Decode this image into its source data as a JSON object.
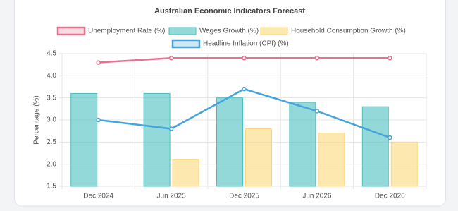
{
  "chart_data": {
    "type": "bar",
    "title": "Australian Economic Indicators Forecast",
    "y_label": "Percentage (%)",
    "categories": [
      "Dec 2024",
      "Jun 2025",
      "Dec 2025",
      "Jun 2026",
      "Dec 2026"
    ],
    "series": [
      {
        "name": "Unemployment Rate (%)",
        "type": "line",
        "color": "#e8718d",
        "values": [
          4.3,
          4.4,
          4.4,
          4.4,
          4.4
        ]
      },
      {
        "name": "Wages Growth (%)",
        "type": "bar",
        "color": "#4bc0c0",
        "values": [
          3.6,
          3.6,
          3.5,
          3.4,
          3.3
        ]
      },
      {
        "name": "Household Consumption Growth (%)",
        "type": "bar",
        "color": "#fcd87a",
        "values": [
          null,
          2.1,
          2.8,
          2.7,
          2.5
        ]
      },
      {
        "name": "Headline Inflation (CPI) (%)",
        "type": "line",
        "color": "#45a4dc",
        "values": [
          3.0,
          2.8,
          3.7,
          3.2,
          2.6
        ]
      }
    ],
    "ylim": [
      1.5,
      4.5
    ],
    "yticks": [
      1.5,
      {
        "value": 2,
        "label": "2.0"
      },
      2.5,
      {
        "value": 3,
        "label": "3.0"
      },
      3.5,
      {
        "value": 4,
        "label": "4.0"
      },
      4.5
    ],
    "grid": true
  }
}
